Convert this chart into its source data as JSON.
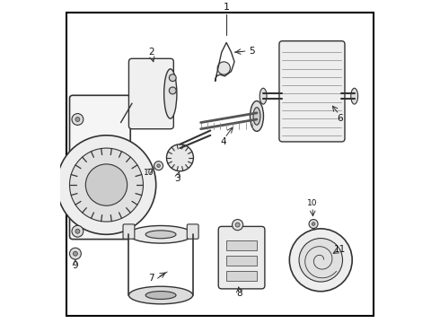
{
  "background_color": "#ffffff",
  "border_color": "#000000",
  "line_color": "#333333",
  "text_color": "#111111",
  "fig_width": 4.9,
  "fig_height": 3.6,
  "dpi": 100
}
